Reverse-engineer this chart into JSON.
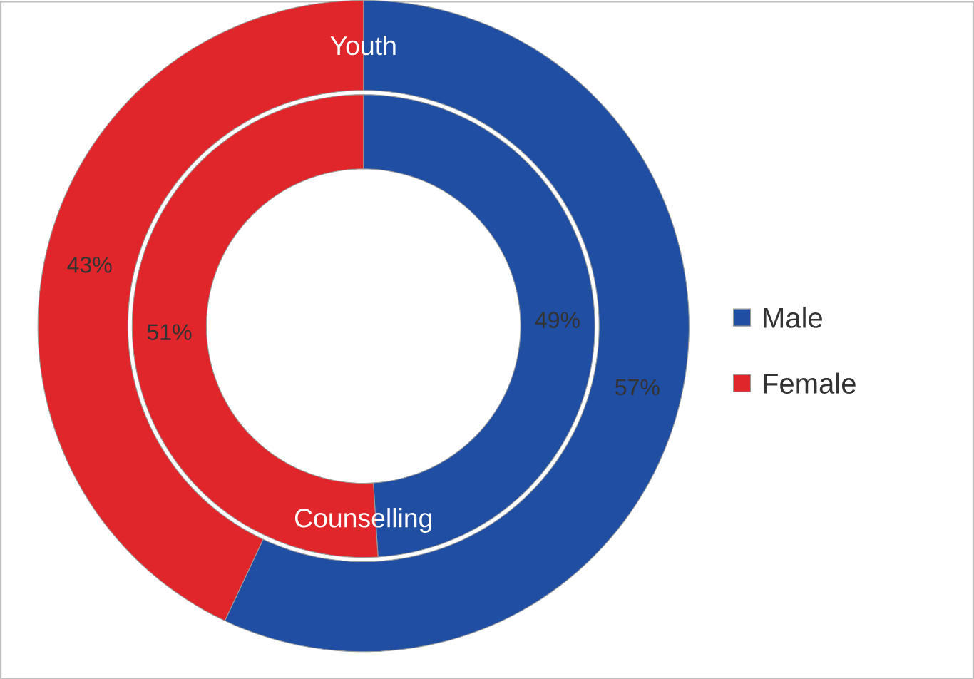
{
  "chart_data": {
    "type": "donut",
    "categories": [
      "Male",
      "Female"
    ],
    "colors": [
      "#1f4ea3",
      "#e0262b"
    ],
    "legend": "right",
    "series": [
      {
        "name": "Youth",
        "values": [
          57,
          43
        ],
        "value_labels": [
          "57%",
          "43%"
        ]
      },
      {
        "name": "Counselling",
        "values": [
          49,
          51
        ],
        "value_labels": [
          "49%",
          "51%"
        ]
      }
    ]
  }
}
